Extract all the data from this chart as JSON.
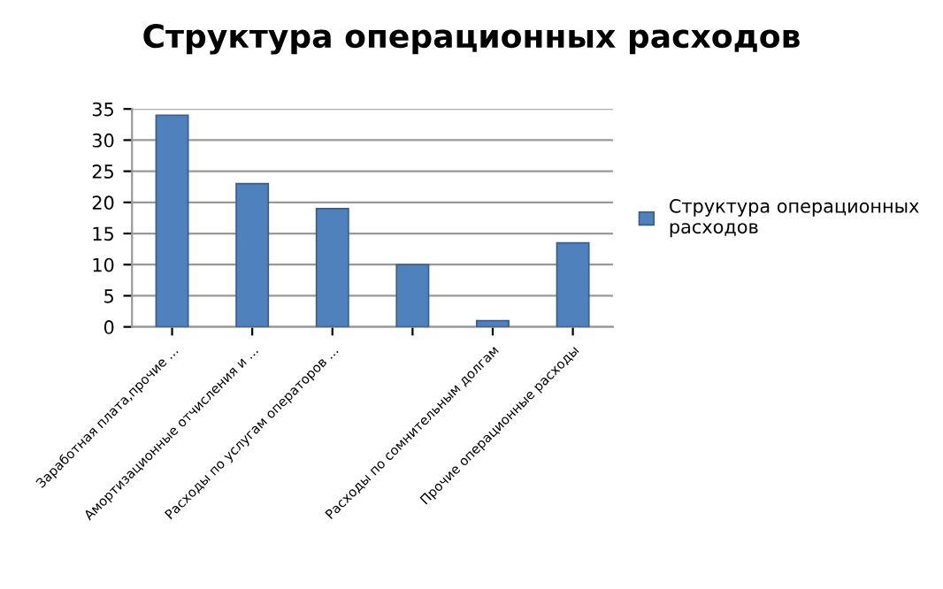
{
  "chart_data": {
    "type": "bar",
    "title": "Структура операционных расходов",
    "categories": [
      "Заработная плата,прочие ...",
      "Амортизационные отчисления и ...",
      "Расходы по услугам операторов ...",
      null,
      "Расходы по сомнительным долгам",
      "Прочие операционные расходы"
    ],
    "series": [
      {
        "name": "Структура операционных расходов",
        "color": "#4f81bd",
        "values": [
          34,
          23,
          19,
          10,
          1,
          13.5
        ]
      }
    ],
    "ylim": [
      0,
      35
    ],
    "yticks": [
      0,
      5,
      10,
      15,
      20,
      25,
      30,
      35
    ],
    "grid": "y",
    "legend": "right"
  }
}
